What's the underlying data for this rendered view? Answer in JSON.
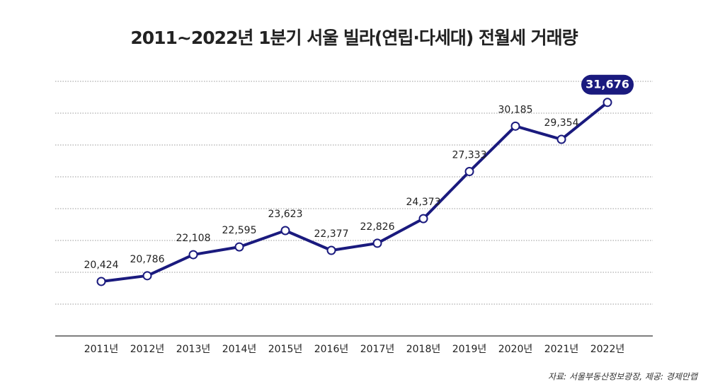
{
  "chart_data": {
    "type": "line",
    "title": "2011~2022년 1분기 서울 빌라(연립·다세대) 전월세 거래량",
    "source": "자료: 서울부동산정보광장, 제공: 경제만랩",
    "categories": [
      "2011년",
      "2012년",
      "2013년",
      "2014년",
      "2015년",
      "2016년",
      "2017년",
      "2018년",
      "2019년",
      "2020년",
      "2021년",
      "2022년"
    ],
    "series": [
      {
        "name": "전월세 거래량",
        "color": "#1a1a7e",
        "values": [
          20424,
          20786,
          22108,
          22595,
          23623,
          22377,
          22826,
          24373,
          27333,
          30185,
          29354,
          31676
        ],
        "value_labels": [
          "20,424",
          "20,786",
          "22,108",
          "22,595",
          "23,623",
          "22,377",
          "22,826",
          "24,373",
          "27,333",
          "30,185",
          "29,354",
          "31,676"
        ]
      }
    ],
    "ylim": [
      17000,
      33000
    ],
    "yticks": [
      19000,
      21000,
      23000,
      25000,
      27000,
      29000,
      31000,
      33000
    ],
    "grid": true
  }
}
